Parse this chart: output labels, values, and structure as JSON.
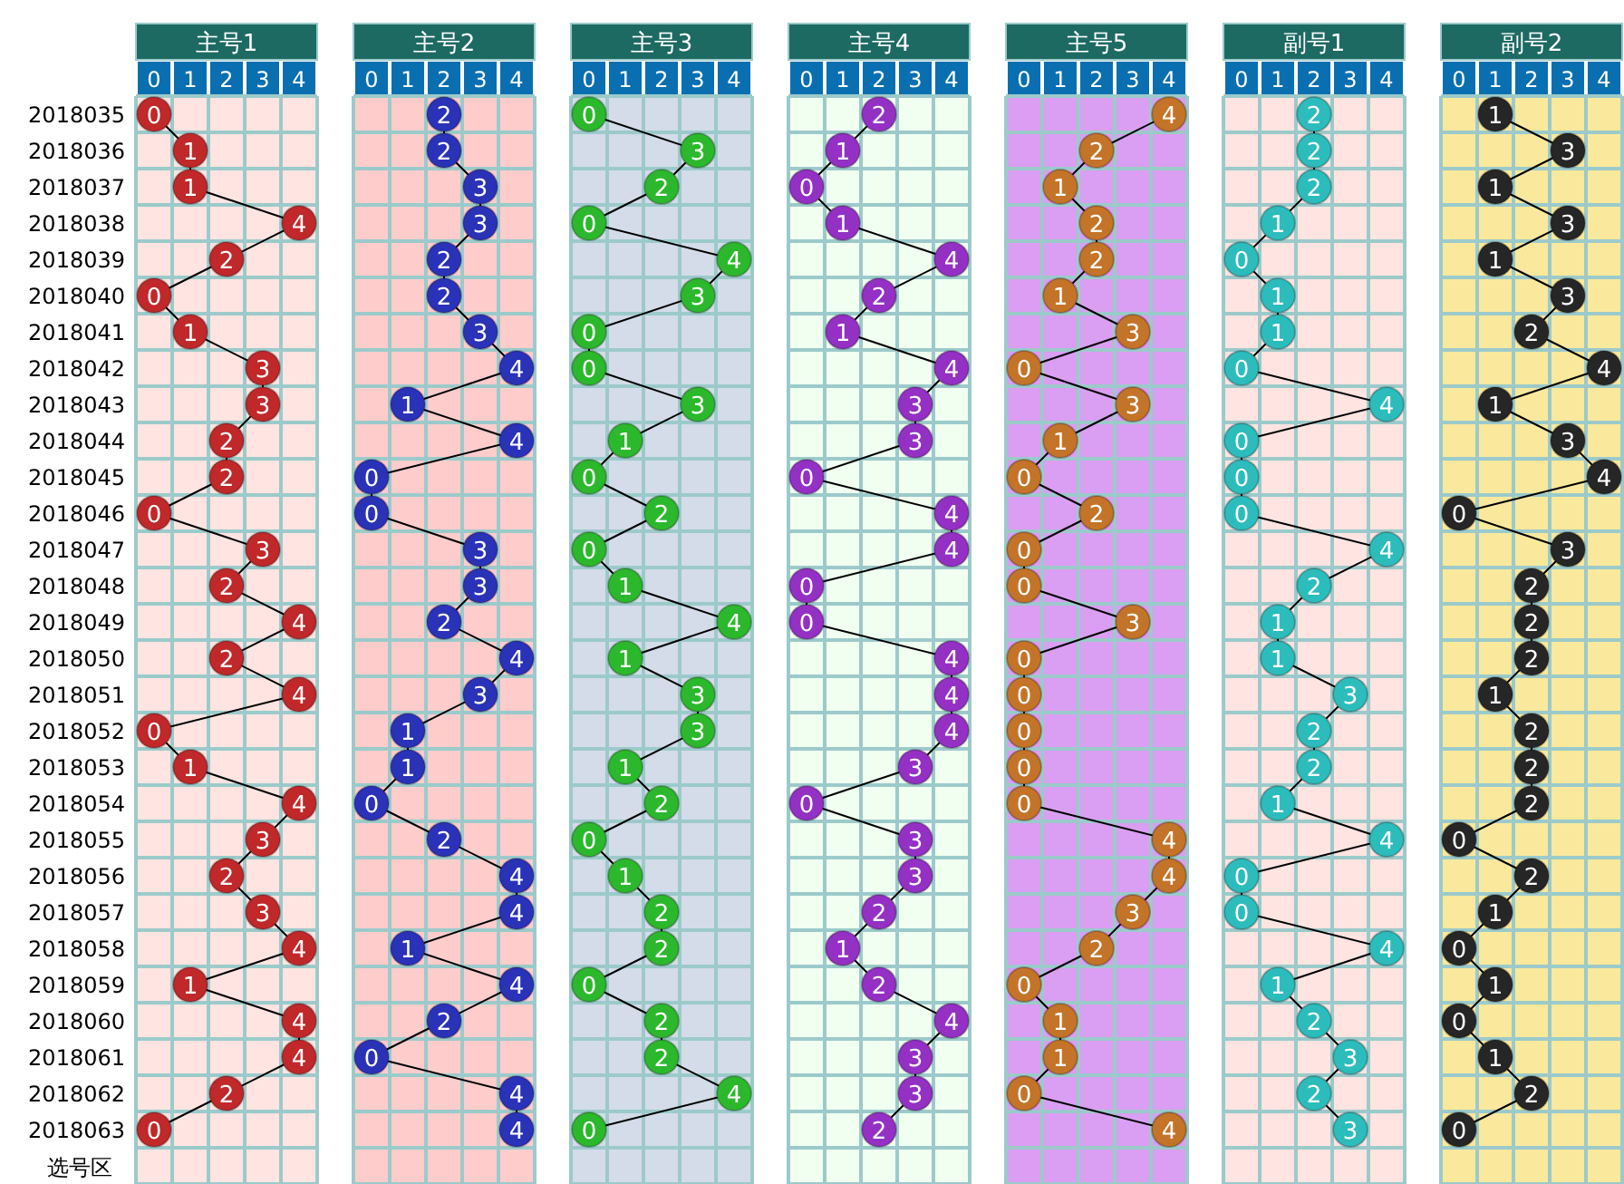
{
  "chart_data": [
    {
      "type": "line",
      "orientation": "horizontal",
      "title": "主号1",
      "categories": [
        "2018035",
        "2018036",
        "2018037",
        "2018038",
        "2018039",
        "2018040",
        "2018041",
        "2018042",
        "2018043",
        "2018044",
        "2018045",
        "2018046",
        "2018047",
        "2018048",
        "2018049",
        "2018050",
        "2018051",
        "2018052",
        "2018053",
        "2018054",
        "2018055",
        "2018056",
        "2018057",
        "2018058",
        "2018059",
        "2018060",
        "2018061",
        "2018062",
        "2018063"
      ],
      "values": [
        0,
        1,
        1,
        4,
        2,
        0,
        1,
        3,
        3,
        2,
        2,
        0,
        3,
        2,
        4,
        2,
        4,
        0,
        1,
        4,
        3,
        2,
        3,
        4,
        1,
        4,
        4,
        2,
        0
      ],
      "color": "#c0282a",
      "xlim": [
        -0.5,
        4.5
      ],
      "xticks": [
        0,
        1,
        2,
        3,
        4
      ],
      "grid": true,
      "marker": "circle",
      "data_labels": true,
      "bands": [
        {
          "axis": "x",
          "from": -0.5,
          "to": 4.5,
          "color": "#ffe4e1"
        }
      ],
      "annotations": [
        "选号区"
      ]
    },
    {
      "type": "line",
      "orientation": "horizontal",
      "title": "主号2",
      "categories": [
        null,
        null,
        null,
        null,
        null,
        null,
        null,
        null,
        null,
        null,
        null,
        null,
        null,
        null,
        null,
        null,
        null,
        null,
        null,
        null,
        null,
        null,
        null,
        null,
        null,
        null,
        null,
        null,
        null
      ],
      "values": [
        2,
        2,
        3,
        3,
        2,
        2,
        3,
        4,
        1,
        4,
        0,
        0,
        3,
        3,
        2,
        4,
        3,
        1,
        1,
        0,
        2,
        4,
        4,
        1,
        4,
        2,
        0,
        4,
        4
      ],
      "color": "#2a32b8",
      "xlim": [
        -0.5,
        4.5
      ],
      "xticks": [
        0,
        1,
        2,
        3,
        4
      ],
      "grid": true,
      "marker": "circle",
      "data_labels": true,
      "tick_labels": "x",
      "bands": [
        {
          "axis": "x",
          "from": -0.5,
          "to": 4.5,
          "color": "#ffcccc"
        }
      ]
    },
    {
      "type": "line",
      "orientation": "horizontal",
      "title": "主号3",
      "categories": [
        null,
        null,
        null,
        null,
        null,
        null,
        null,
        null,
        null,
        null,
        null,
        null,
        null,
        null,
        null,
        null,
        null,
        null,
        null,
        null,
        null,
        null,
        null,
        null,
        null,
        null,
        null,
        null,
        null
      ],
      "values": [
        0,
        3,
        2,
        0,
        4,
        3,
        0,
        0,
        3,
        1,
        0,
        2,
        0,
        1,
        4,
        1,
        3,
        3,
        1,
        2,
        0,
        1,
        2,
        2,
        0,
        2,
        2,
        4,
        0
      ],
      "color": "#2cb82c",
      "xlim": [
        -0.5,
        4.5
      ],
      "xticks": [
        0,
        1,
        2,
        3,
        4
      ],
      "grid": true,
      "marker": "circle",
      "data_labels": true,
      "tick_labels": "x",
      "bands": [
        {
          "axis": "x",
          "from": -0.5,
          "to": 4.5,
          "color": "#d3dce8"
        }
      ]
    },
    {
      "type": "line",
      "orientation": "horizontal",
      "title": "主号4",
      "categories": [
        null,
        null,
        null,
        null,
        null,
        null,
        null,
        null,
        null,
        null,
        null,
        null,
        null,
        null,
        null,
        null,
        null,
        null,
        null,
        null,
        null,
        null,
        null,
        null,
        null,
        null,
        null,
        null,
        null
      ],
      "values": [
        2,
        1,
        0,
        1,
        4,
        2,
        1,
        4,
        3,
        3,
        0,
        4,
        4,
        0,
        0,
        4,
        4,
        4,
        3,
        0,
        3,
        3,
        2,
        1,
        2,
        4,
        3,
        3,
        2
      ],
      "color": "#9430c4",
      "xlim": [
        -0.5,
        4.5
      ],
      "xticks": [
        0,
        1,
        2,
        3,
        4
      ],
      "grid": true,
      "marker": "circle",
      "data_labels": true,
      "tick_labels": "x",
      "bands": [
        {
          "axis": "x",
          "from": -0.5,
          "to": 4.5,
          "color": "#f0fff0"
        }
      ]
    },
    {
      "type": "line",
      "orientation": "horizontal",
      "title": "主号5",
      "categories": [
        null,
        null,
        null,
        null,
        null,
        null,
        null,
        null,
        null,
        null,
        null,
        null,
        null,
        null,
        null,
        null,
        null,
        null,
        null,
        null,
        null,
        null,
        null,
        null,
        null,
        null,
        null,
        null,
        null
      ],
      "values": [
        4,
        2,
        1,
        2,
        2,
        1,
        3,
        0,
        3,
        1,
        0,
        2,
        0,
        0,
        3,
        0,
        0,
        0,
        0,
        0,
        4,
        4,
        3,
        2,
        0,
        1,
        1,
        0,
        4
      ],
      "color": "#c47428",
      "xlim": [
        -0.5,
        4.5
      ],
      "xticks": [
        0,
        1,
        2,
        3,
        4
      ],
      "grid": true,
      "marker": "circle",
      "data_labels": true,
      "tick_labels": "x",
      "bands": [
        {
          "axis": "x",
          "from": -0.5,
          "to": 4.5,
          "color": "#da9ef2"
        }
      ]
    },
    {
      "type": "line",
      "orientation": "horizontal",
      "title": "副号1",
      "categories": [
        null,
        null,
        null,
        null,
        null,
        null,
        null,
        null,
        null,
        null,
        null,
        null,
        null,
        null,
        null,
        null,
        null,
        null,
        null,
        null,
        null,
        null,
        null,
        null,
        null,
        null,
        null,
        null,
        null
      ],
      "values": [
        2,
        2,
        2,
        1,
        0,
        1,
        1,
        0,
        4,
        0,
        0,
        0,
        4,
        2,
        1,
        1,
        3,
        2,
        2,
        1,
        4,
        0,
        0,
        4,
        1,
        2,
        3,
        2,
        3
      ],
      "color": "#2cbcbc",
      "xlim": [
        -0.5,
        4.5
      ],
      "xticks": [
        0,
        1,
        2,
        3,
        4
      ],
      "grid": true,
      "marker": "circle",
      "data_labels": true,
      "tick_labels": "x",
      "bands": [
        {
          "axis": "x",
          "from": -0.5,
          "to": 4.5,
          "color": "#ffe4e1"
        }
      ]
    },
    {
      "type": "line",
      "orientation": "horizontal",
      "title": "副号2",
      "categories": [
        null,
        null,
        null,
        null,
        null,
        null,
        null,
        null,
        null,
        null,
        null,
        null,
        null,
        null,
        null,
        null,
        null,
        null,
        null,
        null,
        null,
        null,
        null,
        null,
        null,
        null,
        null,
        null,
        null
      ],
      "values": [
        1,
        3,
        1,
        3,
        1,
        3,
        2,
        4,
        1,
        3,
        4,
        0,
        3,
        2,
        2,
        2,
        1,
        2,
        2,
        2,
        0,
        2,
        1,
        0,
        1,
        0,
        1,
        2,
        0
      ],
      "color": "#262626",
      "xlim": [
        -0.5,
        4.5
      ],
      "xticks": [
        0,
        1,
        2,
        3,
        4
      ],
      "grid": true,
      "marker": "circle",
      "data_labels": true,
      "tick_labels": "x",
      "bands": [
        {
          "axis": "x",
          "from": -0.5,
          "to": 4.5,
          "color": "#fae89c"
        }
      ]
    }
  ]
}
